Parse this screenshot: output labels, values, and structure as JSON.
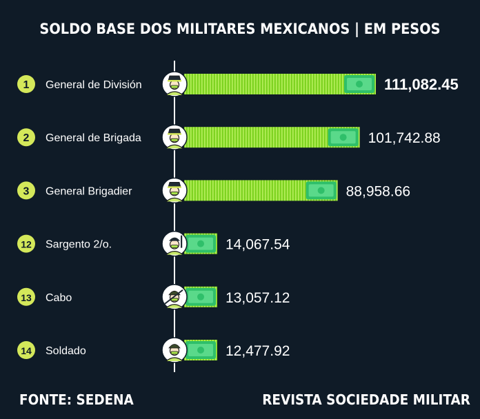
{
  "title": "SOLDO BASE DOS MILITARES MEXICANOS | EM PESOS",
  "footer": {
    "source": "FONTE: SEDENA",
    "publisher": "REVISTA SOCIEDADE MILITAR"
  },
  "colors": {
    "background": "#0f1b27",
    "rank_badge": "#d4e85a",
    "bar": "#7ed321",
    "bar_stripe": "#b6ef5c",
    "money": "#2fbf6a",
    "axis": "#ffffff"
  },
  "chart_data": {
    "type": "bar",
    "orientation": "horizontal",
    "title": "SOLDO BASE DOS MILITARES MEXICANOS | EM PESOS",
    "rows": [
      {
        "rank": "1",
        "category": "General de División",
        "value": 111082.45,
        "label": "111,082.45",
        "highlight": true
      },
      {
        "rank": "2",
        "category": "General de Brigada",
        "value": 101742.88,
        "label": "101,742.88",
        "highlight": false
      },
      {
        "rank": "3",
        "category": "General Brigadier",
        "value": 88958.66,
        "label": "88,958.66",
        "highlight": false
      },
      {
        "rank": "12",
        "category": "Sargento 2/o.",
        "value": 14067.54,
        "label": "14,067.54",
        "highlight": false
      },
      {
        "rank": "13",
        "category": "Cabo",
        "value": 13057.12,
        "label": "13,057.12",
        "highlight": false
      },
      {
        "rank": "14",
        "category": "Soldado",
        "value": 12477.92,
        "label": "12,477.92",
        "highlight": false
      }
    ],
    "icons": [
      "general-avatar-icon",
      "general-avatar-icon",
      "general-avatar-icon",
      "sargento-avatar-icon",
      "cabo-avatar-icon",
      "soldado-avatar-icon"
    ],
    "money_icon": "banknote-icon",
    "grid": false,
    "legend": "none"
  }
}
